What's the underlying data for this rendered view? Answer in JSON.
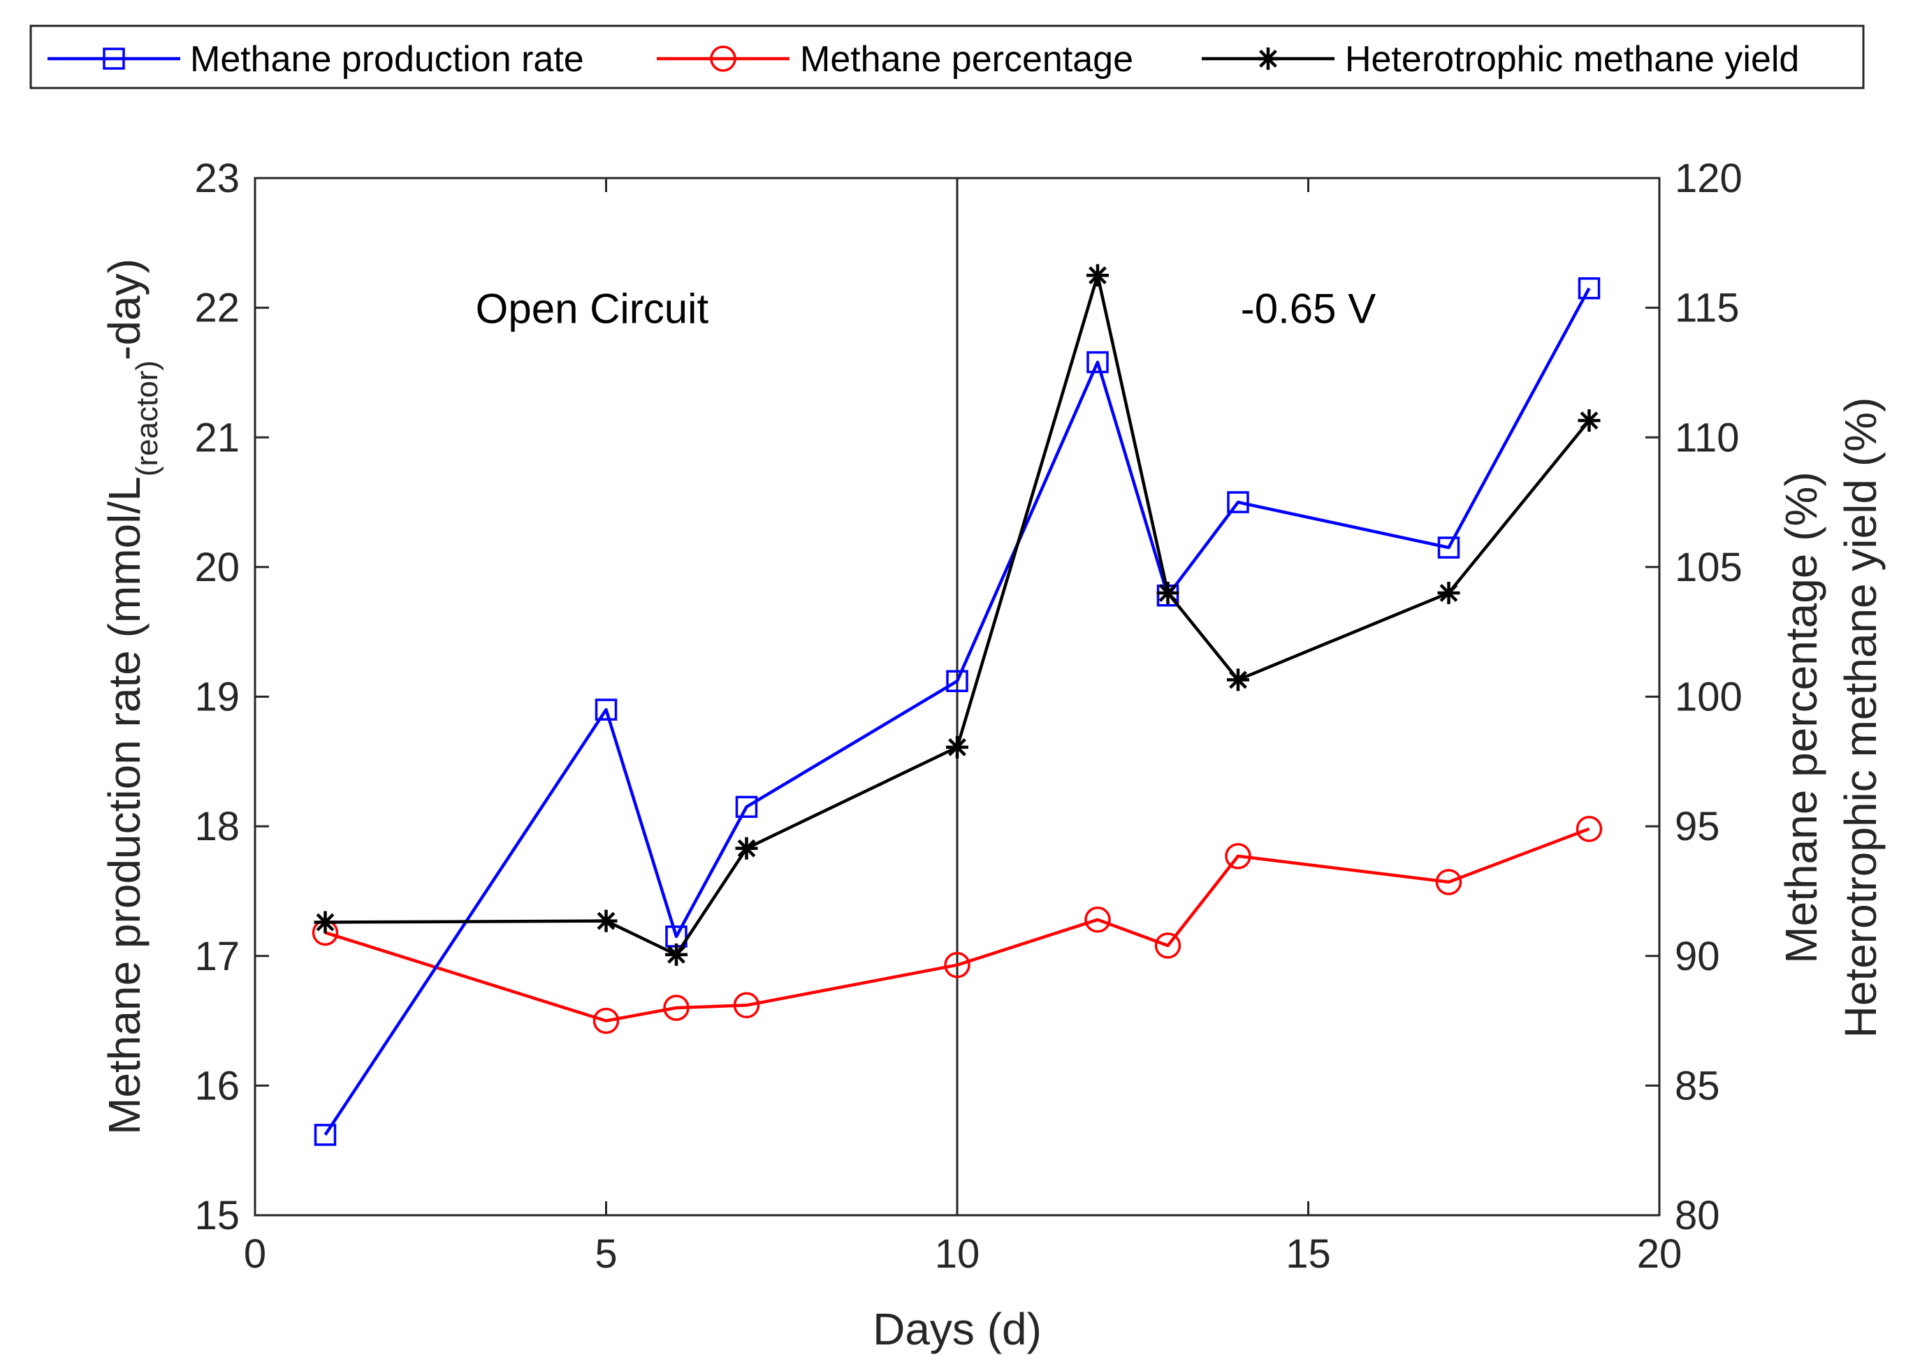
{
  "chart_data": {
    "type": "line",
    "x_axis": {
      "label": "Days (d)",
      "range": [
        0,
        20
      ],
      "ticks": [
        0,
        5,
        10,
        15,
        20
      ],
      "tick_labels": [
        "0",
        "5",
        "10",
        "15",
        "20"
      ]
    },
    "y_left": {
      "label_parts": [
        "Methane production rate (mmol/L",
        "(reactor)",
        "-day)"
      ],
      "range": [
        15,
        23
      ],
      "ticks": [
        15,
        16,
        17,
        18,
        19,
        20,
        21,
        22,
        23
      ],
      "tick_labels": [
        "15",
        "16",
        "17",
        "18",
        "19",
        "20",
        "21",
        "22",
        "23"
      ]
    },
    "y_right": {
      "labels": [
        "Methane percentage (%)",
        "Heterotrophic methane yield (%)"
      ],
      "range": [
        80,
        120
      ],
      "ticks": [
        80,
        85,
        90,
        95,
        100,
        105,
        110,
        115,
        120
      ],
      "tick_labels": [
        "80",
        "85",
        "90",
        "95",
        "100",
        "105",
        "110",
        "115",
        "120"
      ]
    },
    "x": [
      1,
      5,
      6,
      7,
      10,
      12,
      13,
      14,
      17,
      19
    ],
    "series": [
      {
        "name": "Methane production rate",
        "axis": "left",
        "color": "#0000ff",
        "marker": "square",
        "values": [
          15.62,
          18.9,
          17.15,
          18.15,
          19.12,
          21.58,
          19.78,
          20.5,
          20.15,
          22.15
        ]
      },
      {
        "name": "Methane percentage",
        "axis": "right",
        "color": "#ff0000",
        "marker": "circle",
        "values": [
          90.9,
          87.5,
          88.0,
          88.1,
          89.65,
          91.4,
          90.4,
          93.85,
          92.85,
          94.9
        ]
      },
      {
        "name": "Heterotrophic methane yield",
        "axis": "right",
        "color": "#000000",
        "marker": "asterisk",
        "values": [
          91.3,
          91.35,
          90.05,
          94.15,
          98.05,
          116.25,
          104.0,
          100.65,
          104.0,
          110.65
        ]
      }
    ],
    "vertical_line_x": 10,
    "annotations": [
      {
        "text": "Open Circuit",
        "x": 4.8,
        "y": 22
      },
      {
        "text": "-0.65 V",
        "x": 15.0,
        "y": 22
      }
    ],
    "legend_position": "top, outside plot, horizontal",
    "grid": false
  }
}
